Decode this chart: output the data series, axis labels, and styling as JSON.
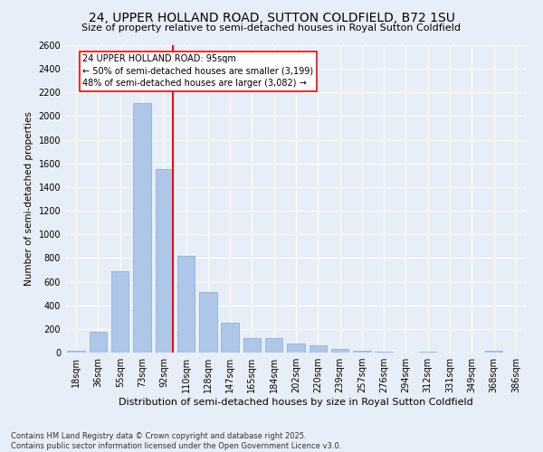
{
  "title": "24, UPPER HOLLAND ROAD, SUTTON COLDFIELD, B72 1SU",
  "subtitle": "Size of property relative to semi-detached houses in Royal Sutton Coldfield",
  "xlabel": "Distribution of semi-detached houses by size in Royal Sutton Coldfield",
  "ylabel": "Number of semi-detached properties",
  "categories": [
    "18sqm",
    "36sqm",
    "55sqm",
    "73sqm",
    "92sqm",
    "110sqm",
    "128sqm",
    "147sqm",
    "165sqm",
    "184sqm",
    "202sqm",
    "220sqm",
    "239sqm",
    "257sqm",
    "276sqm",
    "294sqm",
    "312sqm",
    "331sqm",
    "349sqm",
    "368sqm",
    "386sqm"
  ],
  "values": [
    12,
    175,
    690,
    2110,
    1550,
    820,
    510,
    255,
    125,
    120,
    75,
    58,
    30,
    12,
    5,
    0,
    5,
    0,
    0,
    12,
    0
  ],
  "bar_color": "#aec6e8",
  "bar_edgecolor": "#7bafd4",
  "vline_color": "red",
  "annotation_text": "24 UPPER HOLLAND ROAD: 95sqm\n← 50% of semi-detached houses are smaller (3,199)\n48% of semi-detached houses are larger (3,082) →",
  "annotation_box_color": "white",
  "annotation_box_edgecolor": "red",
  "ylim": [
    0,
    2600
  ],
  "yticks": [
    0,
    200,
    400,
    600,
    800,
    1000,
    1200,
    1400,
    1600,
    1800,
    2000,
    2200,
    2400,
    2600
  ],
  "background_color": "#e8eef7",
  "footnote": "Contains HM Land Registry data © Crown copyright and database right 2025.\nContains public sector information licensed under the Open Government Licence v3.0.",
  "title_fontsize": 10,
  "subtitle_fontsize": 8,
  "xlabel_fontsize": 8,
  "ylabel_fontsize": 7.5,
  "tick_fontsize": 7,
  "footnote_fontsize": 6,
  "annotation_fontsize": 7
}
